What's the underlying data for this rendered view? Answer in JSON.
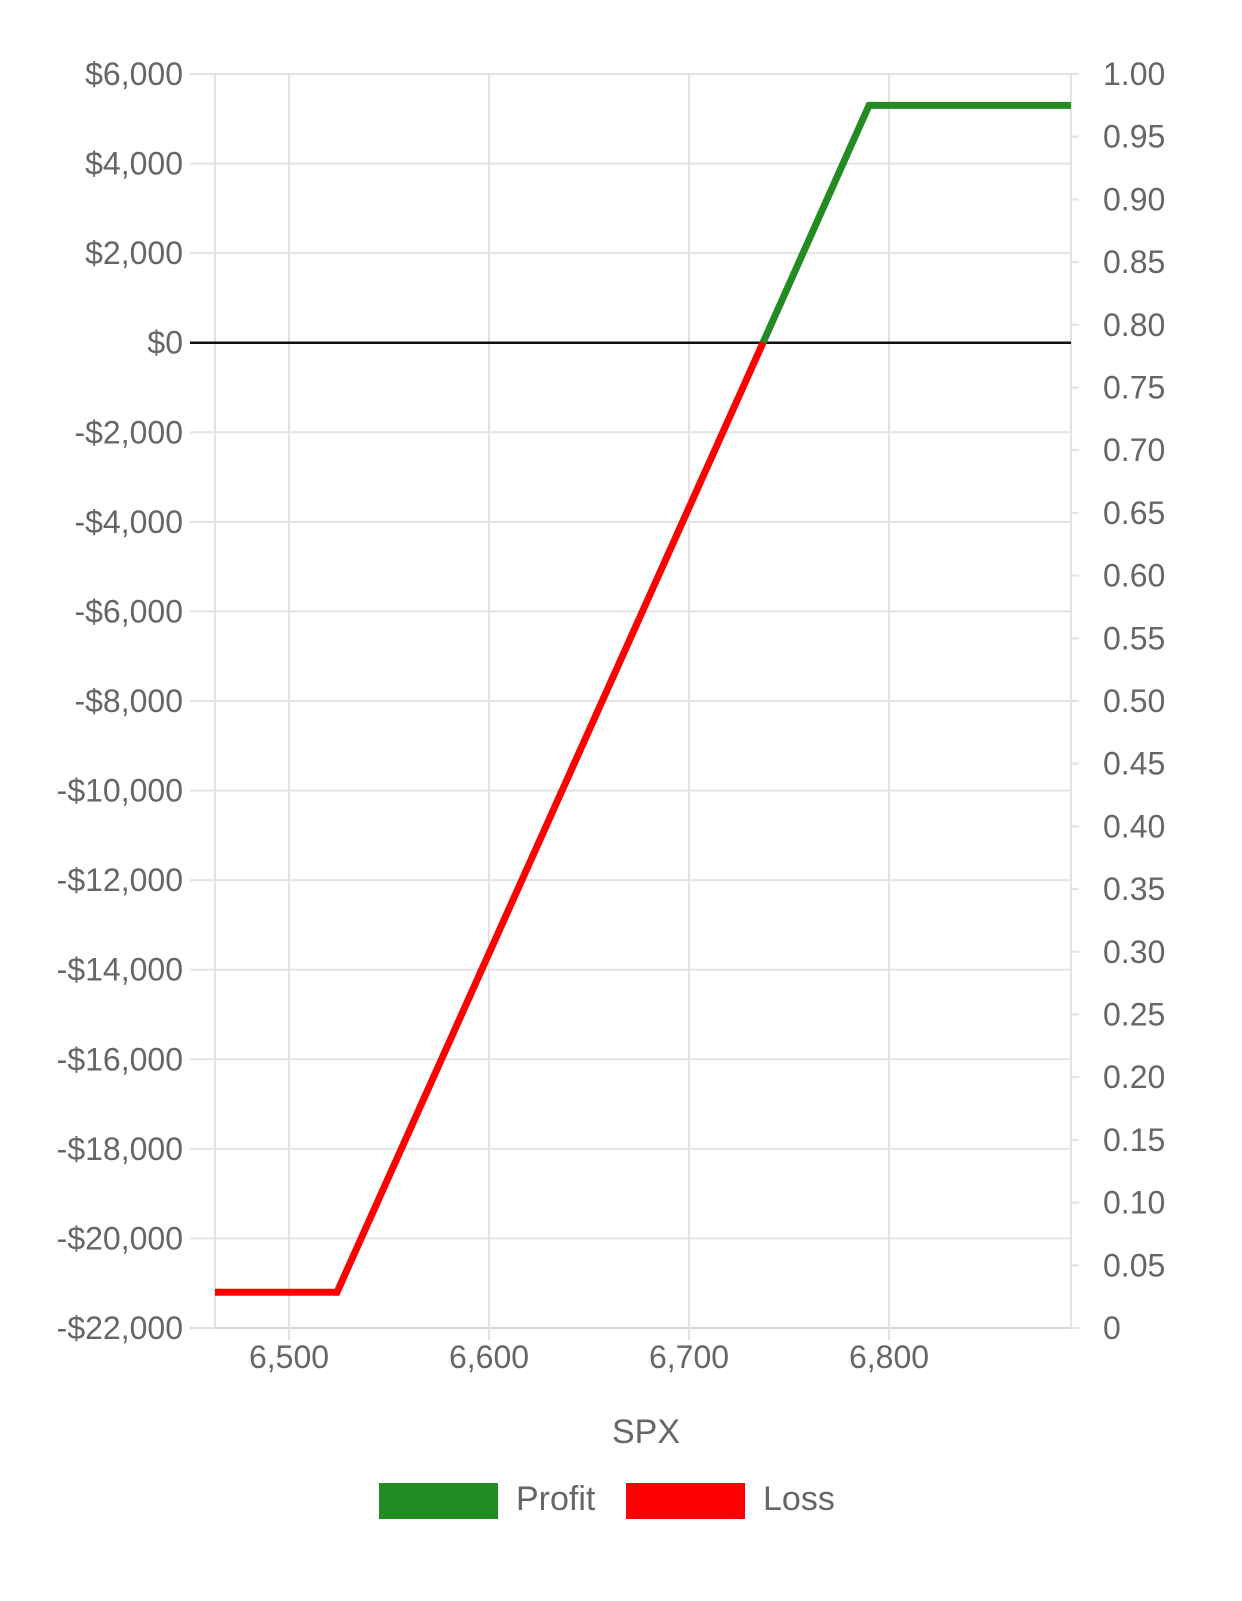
{
  "chart_data": {
    "type": "line",
    "xlabel": "SPX",
    "x_ticks": [
      6500,
      6600,
      6700,
      6800
    ],
    "x_tick_labels": [
      "6,500",
      "6,600",
      "6,700",
      "6,800"
    ],
    "xlim": [
      6463,
      6891
    ],
    "y_left": {
      "ticks": [
        6000,
        4000,
        2000,
        0,
        -2000,
        -4000,
        -6000,
        -8000,
        -10000,
        -12000,
        -14000,
        -16000,
        -18000,
        -20000,
        -22000
      ],
      "tick_labels": [
        "$6,000",
        "$4,000",
        "$2,000",
        "$0",
        "-$2,000",
        "-$4,000",
        "-$6,000",
        "-$8,000",
        "-$10,000",
        "-$12,000",
        "-$14,000",
        "-$16,000",
        "-$18,000",
        "-$20,000",
        "-$22,000"
      ],
      "ylim": [
        -22000,
        6000
      ]
    },
    "y_right": {
      "tick_labels": [
        "1.00",
        "0.95",
        "0.90",
        "0.85",
        "0.80",
        "0.75",
        "0.70",
        "0.65",
        "0.60",
        "0.55",
        "0.50",
        "0.45",
        "0.40",
        "0.35",
        "0.30",
        "0.25",
        "0.20",
        "0.15",
        "0.10",
        "0.05",
        "0"
      ],
      "ylim": [
        0,
        1
      ]
    },
    "series": [
      {
        "name": "Profit",
        "color": "#228b22",
        "x": [
          6737,
          6790,
          6891
        ],
        "y": [
          0,
          5300,
          5300
        ]
      },
      {
        "name": "Loss",
        "color": "#ff0000",
        "x": [
          6463,
          6524,
          6737
        ],
        "y": [
          -21200,
          -21200,
          0
        ]
      }
    ],
    "zero_line": true,
    "grid": true,
    "legend": {
      "position": "bottom",
      "entries": [
        "Profit",
        "Loss"
      ]
    }
  }
}
